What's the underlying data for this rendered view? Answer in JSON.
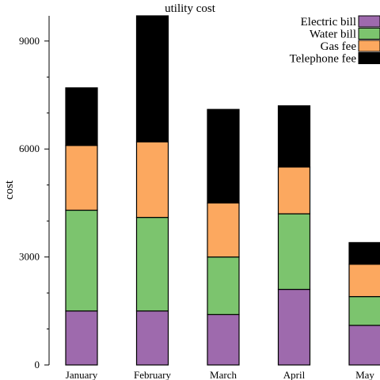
{
  "chart_data": {
    "type": "bar",
    "stacked": true,
    "title": "utility cost",
    "xlabel": "",
    "ylabel": "cost",
    "categories": [
      "January",
      "February",
      "March",
      "April",
      "May"
    ],
    "ylim": [
      0,
      9700
    ],
    "yticks": [
      0,
      3000,
      6000,
      9000
    ],
    "grid": false,
    "legend_position": "top-right",
    "series": [
      {
        "name": "Electric bill",
        "color": "#9e6aad",
        "values": [
          1500,
          1500,
          1400,
          2100,
          1100
        ]
      },
      {
        "name": "Water bill",
        "color": "#7cc46e",
        "values": [
          2800,
          2600,
          1600,
          2100,
          800
        ]
      },
      {
        "name": "Gas fee",
        "color": "#fca85f",
        "values": [
          1800,
          2100,
          1500,
          1300,
          900
        ]
      },
      {
        "name": "Telephone fee",
        "color": "#000000",
        "values": [
          1600,
          3500,
          2600,
          1700,
          600
        ]
      }
    ]
  }
}
